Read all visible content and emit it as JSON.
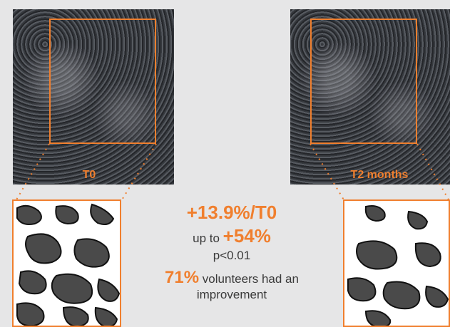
{
  "labels": {
    "before": "T0",
    "after": "T2 months"
  },
  "stats": {
    "main": "+13.9%/T0",
    "upto_prefix": "up to ",
    "upto_value": "+54%",
    "p_value": "p<0.01",
    "volunteers_pct": "71%",
    "volunteers_text_1": " volunteers had an",
    "volunteers_text_2": "improvement"
  },
  "colors": {
    "accent": "#f07f2e",
    "background": "#e6e6e7",
    "text": "#3a3a3a"
  }
}
